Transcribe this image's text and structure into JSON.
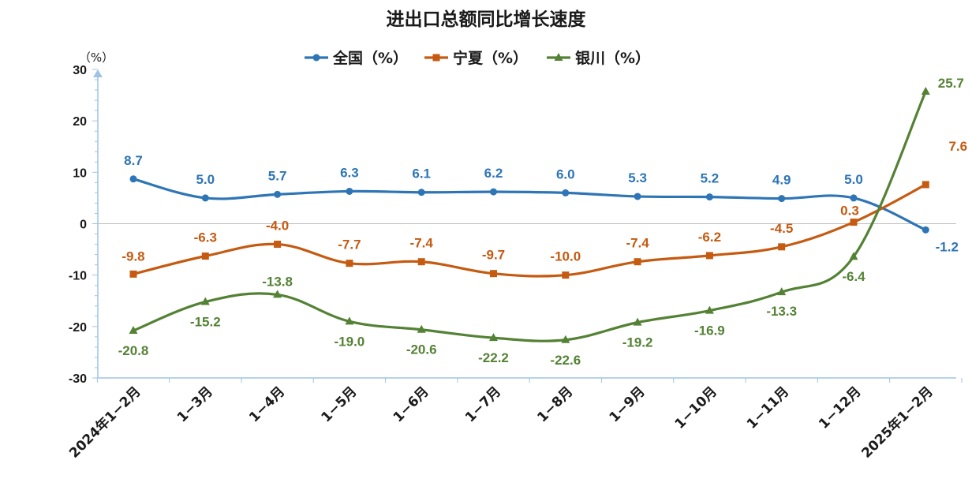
{
  "chart_data": {
    "type": "line",
    "title": "进出口总额同比增长速度",
    "unit_label": "（%）",
    "ylim": [
      -30,
      30
    ],
    "yticks": [
      30,
      20,
      10,
      0,
      -10,
      -20,
      -30
    ],
    "grid": false,
    "legend_position": "top-center",
    "categories": [
      "2024年1−2月",
      "1−3月",
      "1−4月",
      "1−5月",
      "1−6月",
      "1−7月",
      "1−8月",
      "1−9月",
      "1−10月",
      "1−11月",
      "1−12月",
      "2025年1−2月"
    ],
    "series": [
      {
        "name": "全国（%）",
        "color": "#2e75b6",
        "marker": "circle",
        "values": [
          8.7,
          5.0,
          5.7,
          6.3,
          6.1,
          6.2,
          6.0,
          5.3,
          5.2,
          4.9,
          5.0,
          -1.2
        ],
        "labels": [
          "8.7",
          "5.0",
          "5.7",
          "6.3",
          "6.1",
          "6.2",
          "6.0",
          "5.3",
          "5.2",
          "4.9",
          "5.0",
          "-1.2"
        ]
      },
      {
        "name": "宁夏（%）",
        "color": "#c55a11",
        "marker": "square",
        "values": [
          -9.8,
          -6.3,
          -4.0,
          -7.7,
          -7.4,
          -9.7,
          -10.0,
          -7.4,
          -6.2,
          -4.5,
          0.3,
          7.6
        ],
        "labels": [
          "-9.8",
          "-6.3",
          "-4.0",
          "-7.7",
          "-7.4",
          "-9.7",
          "-10.0",
          "-7.4",
          "-6.2",
          "-4.5",
          "0.3",
          "7.6"
        ]
      },
      {
        "name": "银川（%）",
        "color": "#548235",
        "marker": "triangle",
        "values": [
          -20.8,
          -15.2,
          -13.8,
          -19.0,
          -20.6,
          -22.2,
          -22.6,
          -19.2,
          -16.9,
          -13.3,
          -6.4,
          25.7
        ],
        "labels": [
          "-20.8",
          "-15.2",
          "-13.8",
          "-19.0",
          "-20.6",
          "-22.2",
          "-22.6",
          "-19.2",
          "-16.9",
          "-13.3",
          "-6.4",
          "25.7"
        ]
      }
    ]
  }
}
